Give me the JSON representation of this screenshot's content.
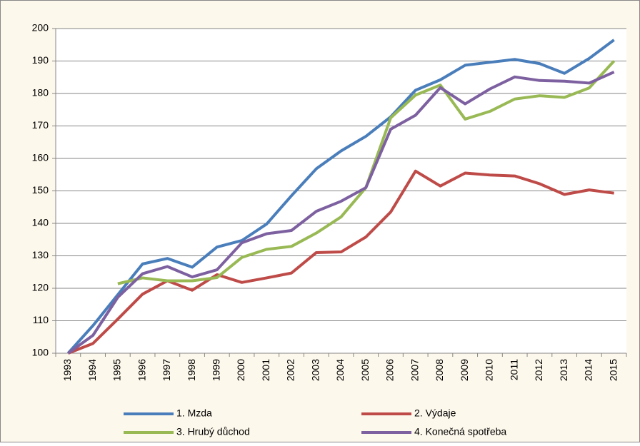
{
  "chart_data": {
    "type": "line",
    "categories": [
      "1993",
      "1994",
      "1995",
      "1996",
      "1997",
      "1998",
      "1999",
      "2000",
      "2001",
      "2002",
      "2003",
      "2004",
      "2005",
      "2006",
      "2007",
      "2008",
      "2009",
      "2010",
      "2011",
      "2012",
      "2013",
      "2014",
      "2015"
    ],
    "series": [
      {
        "name": "1. Mzda",
        "color": "#4a7ebb",
        "values": [
          100,
          108.5,
          118,
          127.5,
          129.2,
          126.5,
          132.7,
          134.7,
          139.8,
          148.5,
          156.8,
          162.3,
          166.8,
          172.8,
          181,
          184.2,
          188.7,
          189.6,
          190.5,
          189.2,
          186.2,
          190.8,
          196.5
        ]
      },
      {
        "name": "2. Výdaje",
        "color": "#be4b48",
        "values": [
          100,
          103,
          110.5,
          118.2,
          122.3,
          119.4,
          124.2,
          121.8,
          123.2,
          124.7,
          131,
          131.2,
          135.8,
          143.5,
          156.1,
          151.5,
          155.5,
          154.9,
          154.6,
          152.2,
          148.9,
          150.3,
          149.3
        ]
      },
      {
        "name": "3. Hrubý důchod",
        "color": "#98b954",
        "values": [
          null,
          null,
          121.4,
          123.2,
          122.3,
          122.3,
          123.3,
          129.5,
          132,
          132.9,
          137,
          142,
          151,
          172.5,
          179.5,
          182.6,
          172.1,
          174.5,
          178.3,
          179.3,
          178.8,
          181.7,
          190
        ]
      },
      {
        "name": "4. Konečná spotřeba",
        "color": "#7d60a0",
        "values": [
          100,
          105.5,
          117.2,
          124.5,
          126.7,
          123.5,
          125.7,
          134,
          136.8,
          137.8,
          143.7,
          146.8,
          151,
          169,
          173.3,
          181.8,
          176.8,
          181.4,
          185.1,
          184,
          183.8,
          183.2,
          186.6
        ]
      }
    ],
    "ylim": [
      100,
      200
    ],
    "yticks": [
      100,
      110,
      120,
      130,
      140,
      150,
      160,
      170,
      180,
      190,
      200
    ],
    "grid": true
  }
}
